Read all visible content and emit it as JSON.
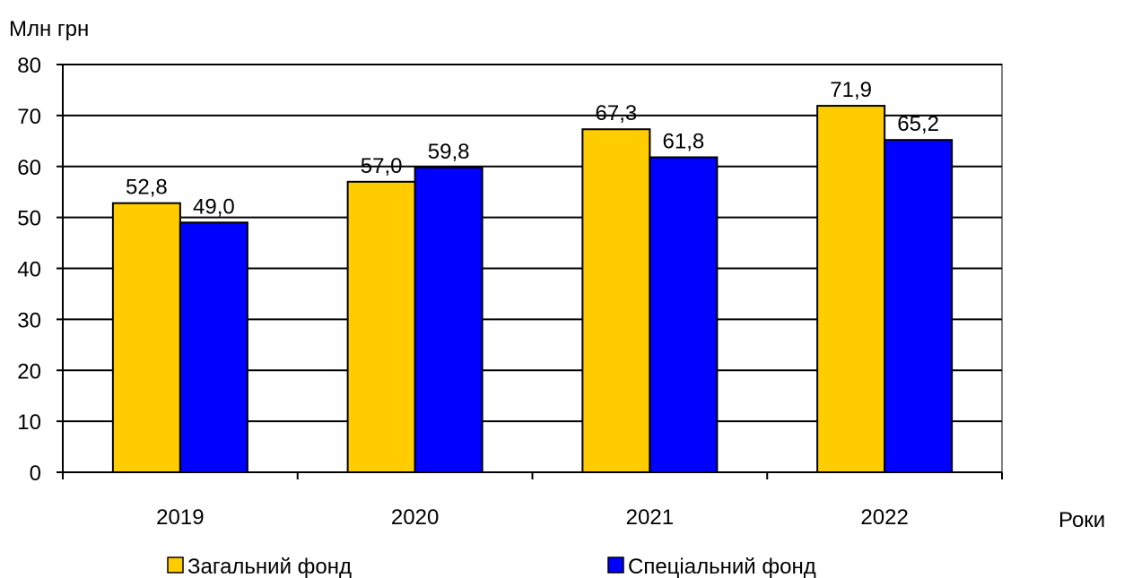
{
  "chart_data": {
    "type": "bar",
    "ylabel": "Млн грн",
    "xlabel": "Роки",
    "categories": [
      "2019",
      "2020",
      "2021",
      "2022"
    ],
    "ylim": [
      0,
      80
    ],
    "yticks": [
      0,
      10,
      20,
      30,
      40,
      50,
      60,
      70,
      80
    ],
    "grid": true,
    "legend_position": "bottom",
    "series": [
      {
        "name": "Загальний фонд",
        "values": [
          52.8,
          57.0,
          67.3,
          71.9
        ],
        "labels": [
          "52,8",
          "57,0",
          "67,3",
          "71,9"
        ],
        "color": "#FFCC00"
      },
      {
        "name": "Спеціальний фонд",
        "values": [
          49.0,
          59.8,
          61.8,
          65.2
        ],
        "labels": [
          "49,0",
          "59,8",
          "61,8",
          "65,2"
        ],
        "color": "#0000FF"
      }
    ]
  }
}
